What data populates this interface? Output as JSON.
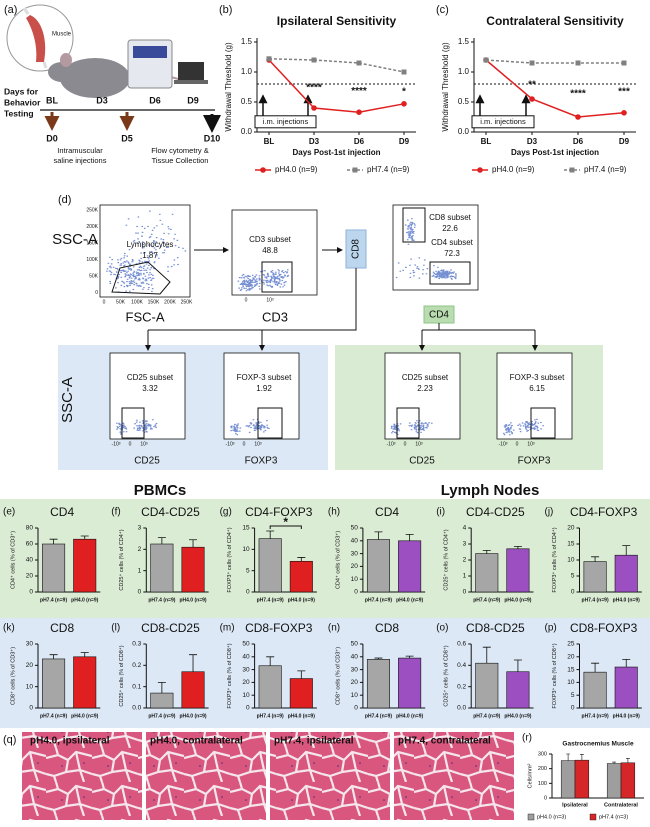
{
  "panels": {
    "a": {
      "label": "(a)",
      "muscle": "Muscle",
      "timeline_title": [
        "Days for",
        "Behavior",
        "Testing"
      ],
      "test_days": [
        "BL",
        "D3",
        "D6",
        "D9"
      ],
      "injection_days": [
        "D0",
        "D5"
      ],
      "end_day": "D10",
      "injection_note": [
        "Intramuscular",
        "saline injections"
      ],
      "collection_note": [
        "Flow cytometry &",
        "Tissue Collection"
      ]
    },
    "d": {
      "label": "(d)",
      "y_axis": "SSC-A",
      "plots": [
        {
          "x_axis": "FSC-A",
          "gate": "Lymphocytes",
          "pct": "1.87",
          "yticks": [
            "250K",
            "200K",
            "150K",
            "100K",
            "50K",
            "0"
          ],
          "xticks": [
            "0",
            "50K",
            "100K",
            "150K",
            "200K",
            "250K"
          ]
        },
        {
          "x_axis": "CD3",
          "gate": "CD3 subset",
          "pct": "48.8",
          "xticks": [
            "0",
            "10³"
          ]
        },
        {
          "y_axis": "CD8",
          "x_axis": "CD4",
          "gates": [
            {
              "name": "CD8 subset",
              "pct": "22.6"
            },
            {
              "name": "CD4 subset",
              "pct": "72.3"
            }
          ]
        }
      ],
      "sub_y_axis": "SSC-A",
      "subplots": [
        {
          "x_axis": "CD25",
          "gate": "CD25 subset",
          "pct": "3.32",
          "xticks": [
            "-10³",
            "0",
            "10³"
          ]
        },
        {
          "x_axis": "FOXP3",
          "gate": "FOXP-3 subset",
          "pct": "1.92",
          "xticks": [
            "-10³",
            "0",
            "10³"
          ]
        },
        {
          "x_axis": "CD25",
          "gate": "CD25 subset",
          "pct": "2.23",
          "xticks": [
            "-10³",
            "0",
            "10³"
          ]
        },
        {
          "x_axis": "FOXP3",
          "gate": "FOXP-3 subset",
          "pct": "6.15",
          "xticks": [
            "-10³",
            "0",
            "10³"
          ]
        }
      ]
    },
    "headers": {
      "pbmc": "PBMCs",
      "lymph": "Lymph Nodes"
    },
    "q": {
      "label": "(q)",
      "images": [
        "pH4.0, ipsilateral",
        "pH4.0, contralateral",
        "pH7.4, ipsilateral",
        "pH7.4, contralateral"
      ]
    }
  },
  "chart_data": [
    {
      "type": "line",
      "panel": "(b)",
      "title": "Ipsilateral Sensitivity",
      "ylabel": "Withdrawal Threshold (g)",
      "xlabel": "Days Post-1st injection",
      "categories": [
        "BL",
        "D3",
        "D6",
        "D9"
      ],
      "series": [
        {
          "name": "pH4.0 (n=9)",
          "color": "#e02020",
          "marker": "circle",
          "line_style": "solid",
          "values": [
            1.2,
            0.4,
            0.33,
            0.47
          ]
        },
        {
          "name": "pH7.4 (n=9)",
          "color": "#808080",
          "marker": "square",
          "line_style": "dashed",
          "values": [
            1.22,
            1.2,
            1.15,
            1.0
          ]
        }
      ],
      "ylim": [
        0,
        1.5
      ],
      "yticks": [
        {
          "value": 0,
          "label": "0.0"
        },
        0.5,
        {
          "value": 1,
          "label": "1.0"
        },
        1.5
      ],
      "hline": 0.8,
      "annotations": [
        {
          "x": "D3",
          "text": "****"
        },
        {
          "x": "D6",
          "text": "****"
        },
        {
          "x": "D9",
          "text": "*"
        }
      ],
      "note": "i.m. injections"
    },
    {
      "type": "line",
      "panel": "(c)",
      "title": "Contralateral Sensitivity",
      "ylabel": "Withdrawal Threshold (g)",
      "xlabel": "Days Post-1st injection",
      "categories": [
        "BL",
        "D3",
        "D6",
        "D9"
      ],
      "series": [
        {
          "name": "pH4.0 (n=9)",
          "color": "#e02020",
          "marker": "circle",
          "line_style": "solid",
          "values": [
            1.2,
            0.55,
            0.25,
            0.32
          ]
        },
        {
          "name": "pH7.4 (n=9)",
          "color": "#808080",
          "marker": "square",
          "line_style": "dashed",
          "values": [
            1.2,
            1.15,
            1.15,
            1.15
          ]
        }
      ],
      "ylim": [
        0,
        1.5
      ],
      "yticks": [
        {
          "value": 0,
          "label": "0.0"
        },
        0.5,
        {
          "value": 1,
          "label": "1.0"
        },
        1.5
      ],
      "hline": 0.8,
      "annotations": [
        {
          "x": "D3",
          "text": "**"
        },
        {
          "x": "D6",
          "text": "****"
        },
        {
          "x": "D9",
          "text": "***"
        }
      ],
      "note": "i.m. injections"
    },
    {
      "type": "bar",
      "panel": "(e)",
      "title": "CD4",
      "ylabel": "CD4⁺ cells (% of CD3⁺)",
      "categories": [
        "pH7.4 (n=9)",
        "pH4.0 (n=9)"
      ],
      "values": [
        60,
        66
      ],
      "errors": [
        6,
        4
      ],
      "colors": [
        "#a6a6a6",
        "#e02020"
      ],
      "ylim": [
        0,
        80
      ],
      "yticks": [
        0,
        20,
        40,
        60,
        80
      ]
    },
    {
      "type": "bar",
      "panel": "(f)",
      "title": "CD4-CD25",
      "ylabel": "CD25⁺ cells (% of CD4⁺)",
      "categories": [
        "pH7.4 (n=9)",
        "pH4.0 (n=9)"
      ],
      "values": [
        2.25,
        2.1
      ],
      "errors": [
        0.3,
        0.35
      ],
      "colors": [
        "#a6a6a6",
        "#e02020"
      ],
      "ylim": [
        0,
        3
      ],
      "yticks": [
        0,
        1,
        2,
        3
      ]
    },
    {
      "type": "bar",
      "panel": "(g)",
      "title": "CD4-FOXP3",
      "ylabel": "FOXP3⁺ cells (% of CD4⁺)",
      "categories": [
        "pH7.4 (n=9)",
        "pH4.0 (n=9)"
      ],
      "values": [
        12.5,
        7.2
      ],
      "errors": [
        1.8,
        0.9
      ],
      "colors": [
        "#a6a6a6",
        "#e02020"
      ],
      "ylim": [
        0,
        15
      ],
      "yticks": [
        0,
        5,
        10,
        15
      ],
      "significance": "*"
    },
    {
      "type": "bar",
      "panel": "(h)",
      "title": "CD4",
      "ylabel": "CD4⁺ cells (% of CD3⁺)",
      "categories": [
        "pH7.4 (n=9)",
        "pH4.0 (n=9)"
      ],
      "values": [
        41,
        40
      ],
      "errors": [
        6,
        5
      ],
      "colors": [
        "#a6a6a6",
        "#9b4fc0"
      ],
      "ylim": [
        0,
        50
      ],
      "yticks": [
        0,
        10,
        20,
        30,
        40,
        50
      ]
    },
    {
      "type": "bar",
      "panel": "(i)",
      "title": "CD4-CD25",
      "ylabel": "CD25⁺ cells (% of CD4⁺)",
      "categories": [
        "pH7.4 (n=9)",
        "pH4.0 (n=9)"
      ],
      "values": [
        2.4,
        2.7
      ],
      "errors": [
        0.2,
        0.15
      ],
      "colors": [
        "#a6a6a6",
        "#9b4fc0"
      ],
      "ylim": [
        0,
        4
      ],
      "yticks": [
        0,
        1,
        2,
        3,
        4
      ]
    },
    {
      "type": "bar",
      "panel": "(j)",
      "title": "CD4-FOXP3",
      "ylabel": "FOXP3⁺ cells (% of CD4⁺)",
      "categories": [
        "pH7.4 (n=9)",
        "pH4.0 (n=9)"
      ],
      "values": [
        9.5,
        11.5
      ],
      "errors": [
        1.5,
        3
      ],
      "colors": [
        "#a6a6a6",
        "#9b4fc0"
      ],
      "ylim": [
        0,
        20
      ],
      "yticks": [
        0,
        5,
        10,
        15,
        20
      ]
    },
    {
      "type": "bar",
      "panel": "(k)",
      "title": "CD8",
      "ylabel": "CD8⁺ cells (% of CD3⁺)",
      "categories": [
        "pH7.4 (n=9)",
        "pH4.0 (n=9)"
      ],
      "values": [
        23,
        24
      ],
      "errors": [
        2,
        2
      ],
      "colors": [
        "#a6a6a6",
        "#e02020"
      ],
      "ylim": [
        0,
        30
      ],
      "yticks": [
        0,
        10,
        20,
        30
      ]
    },
    {
      "type": "bar",
      "panel": "(l)",
      "title": "CD8-CD25",
      "ylabel": "CD25⁺ cells (% of CD8⁺)",
      "categories": [
        "pH7.4 (n=9)",
        "pH4.0 (n=9)"
      ],
      "values": [
        0.07,
        0.17
      ],
      "errors": [
        0.05,
        0.08
      ],
      "colors": [
        "#a6a6a6",
        "#e02020"
      ],
      "ylim": [
        0,
        0.3
      ],
      "yticks": [
        {
          "value": 0,
          "label": "0.0"
        },
        0.1,
        0.2,
        0.3
      ]
    },
    {
      "type": "bar",
      "panel": "(m)",
      "title": "CD8-FOXP3",
      "ylabel": "FOXP3⁺ cells (% of CD8⁺)",
      "categories": [
        "pH7.4 (n=9)",
        "pH4.0 (n=9)"
      ],
      "values": [
        33,
        23
      ],
      "errors": [
        7,
        6
      ],
      "colors": [
        "#a6a6a6",
        "#e02020"
      ],
      "ylim": [
        0,
        50
      ],
      "yticks": [
        0,
        10,
        20,
        30,
        40,
        50
      ]
    },
    {
      "type": "bar",
      "panel": "(n)",
      "title": "CD8",
      "ylabel": "CD8⁺ cells (% of CD3⁺)",
      "categories": [
        "pH7.4 (n=9)",
        "pH4.0 (n=9)"
      ],
      "values": [
        38,
        39
      ],
      "errors": [
        1,
        1.5
      ],
      "colors": [
        "#a6a6a6",
        "#9b4fc0"
      ],
      "ylim": [
        0,
        50
      ],
      "yticks": [
        0,
        10,
        20,
        30,
        40,
        50
      ]
    },
    {
      "type": "bar",
      "panel": "(o)",
      "title": "CD8-CD25",
      "ylabel": "CD25⁺ cells (% of CD8⁺)",
      "categories": [
        "pH7.4 (n=9)",
        "pH4.0 (n=9)"
      ],
      "values": [
        0.42,
        0.34
      ],
      "errors": [
        0.15,
        0.11
      ],
      "colors": [
        "#a6a6a6",
        "#9b4fc0"
      ],
      "ylim": [
        0,
        0.6
      ],
      "yticks": [
        {
          "value": 0,
          "label": "0.0"
        },
        0.2,
        0.4,
        0.6
      ]
    },
    {
      "type": "bar",
      "panel": "(p)",
      "title": "CD8-FOXP3",
      "ylabel": "FOXP3⁺ cells (% of CD8⁺)",
      "categories": [
        "pH7.4 (n=9)",
        "pH4.0 (n=9)"
      ],
      "values": [
        14,
        16
      ],
      "errors": [
        3.5,
        3
      ],
      "colors": [
        "#a6a6a6",
        "#9b4fc0"
      ],
      "ylim": [
        0,
        25
      ],
      "yticks": [
        0,
        5,
        10,
        15,
        20,
        25
      ]
    },
    {
      "type": "grouped_bar",
      "panel": "(r)",
      "title": "Gastrocnemius Muscle",
      "ylabel": "Cells/mm²",
      "categories": [
        "Ipsilateral",
        "Contralateral"
      ],
      "series": [
        {
          "name": "pH4.0 (n=3)",
          "color": "#9e9e9e",
          "values": [
            255,
            235
          ],
          "errors": [
            45,
            10
          ]
        },
        {
          "name": "pH7.4 (n=3)",
          "color": "#d62728",
          "values": [
            258,
            240
          ],
          "errors": [
            40,
            30
          ]
        }
      ],
      "ylim": [
        0,
        300
      ],
      "yticks": [
        0,
        100,
        200,
        300
      ]
    }
  ]
}
